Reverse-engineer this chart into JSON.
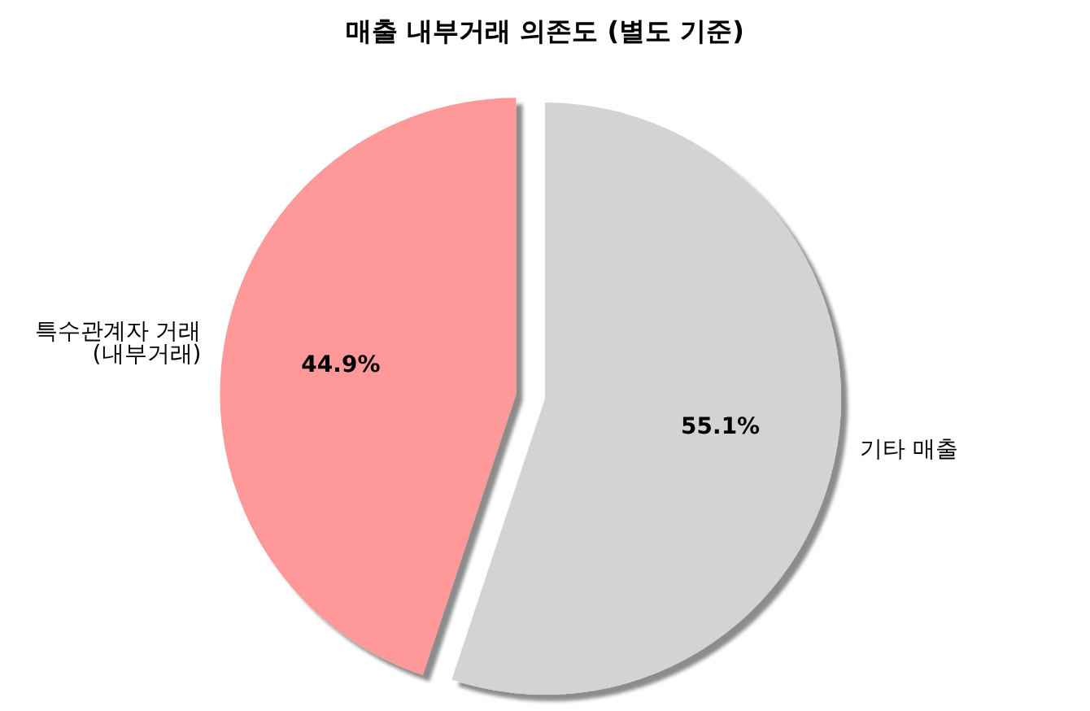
{
  "chart_data": {
    "type": "pie",
    "title": "매출 내부거래 의존도 (별도 기준)",
    "categories": [
      "특수관계자 거래\n(내부거래)",
      "기타 매출"
    ],
    "values": [
      44.9,
      55.1
    ],
    "colors": [
      "#ff9999",
      "#d3d3d3"
    ],
    "value_labels": [
      "44.9%",
      "55.1%"
    ],
    "legend": false
  }
}
